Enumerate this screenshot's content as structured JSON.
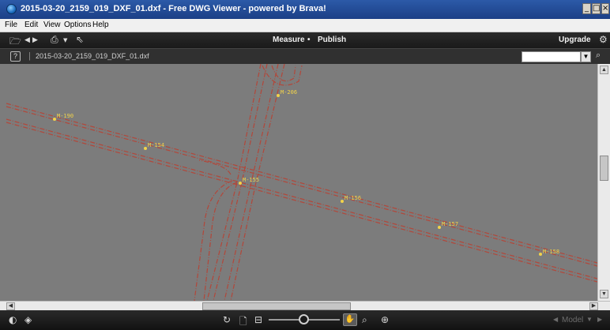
{
  "window": {
    "title": "2015-03-20_2159_019_DXF_01.dxf - Free DWG Viewer - powered by Brava!",
    "controls": {
      "minimize": "_",
      "maximize": "□",
      "close": "×"
    }
  },
  "menu": {
    "items": [
      "File",
      "Edit",
      "View",
      "Options",
      "Help"
    ]
  },
  "toolbar": {
    "measure_label": "Measure",
    "separator": "•",
    "publish_label": "Publish",
    "upgrade_label": "Upgrade"
  },
  "docbar": {
    "help_label": "?",
    "separator": "|",
    "document_name": "2015-03-20_2159_019_DXF_01.dxf",
    "search_value": ""
  },
  "drawing": {
    "background": "#7c7c7c",
    "line_color": "#b2473a",
    "marker_color": "#f2d34a",
    "markers": [
      "M-190",
      "M-154",
      "M-206",
      "M-155",
      "M-156",
      "M-157",
      "M-158"
    ]
  },
  "statusbar": {
    "model_label": "Model"
  },
  "icons": {
    "toolbar": [
      "folder-open-icon",
      "back-icon",
      "forward-icon",
      "print-icon",
      "print-dropdown-icon",
      "select-cursor-icon",
      "settings-icon"
    ],
    "statusbar": [
      "contrast-icon",
      "layers-icon",
      "rotate-icon",
      "page-icon",
      "fit-width-icon",
      "pan-hand-icon",
      "zoom-window-icon",
      "zoom-icon"
    ]
  }
}
